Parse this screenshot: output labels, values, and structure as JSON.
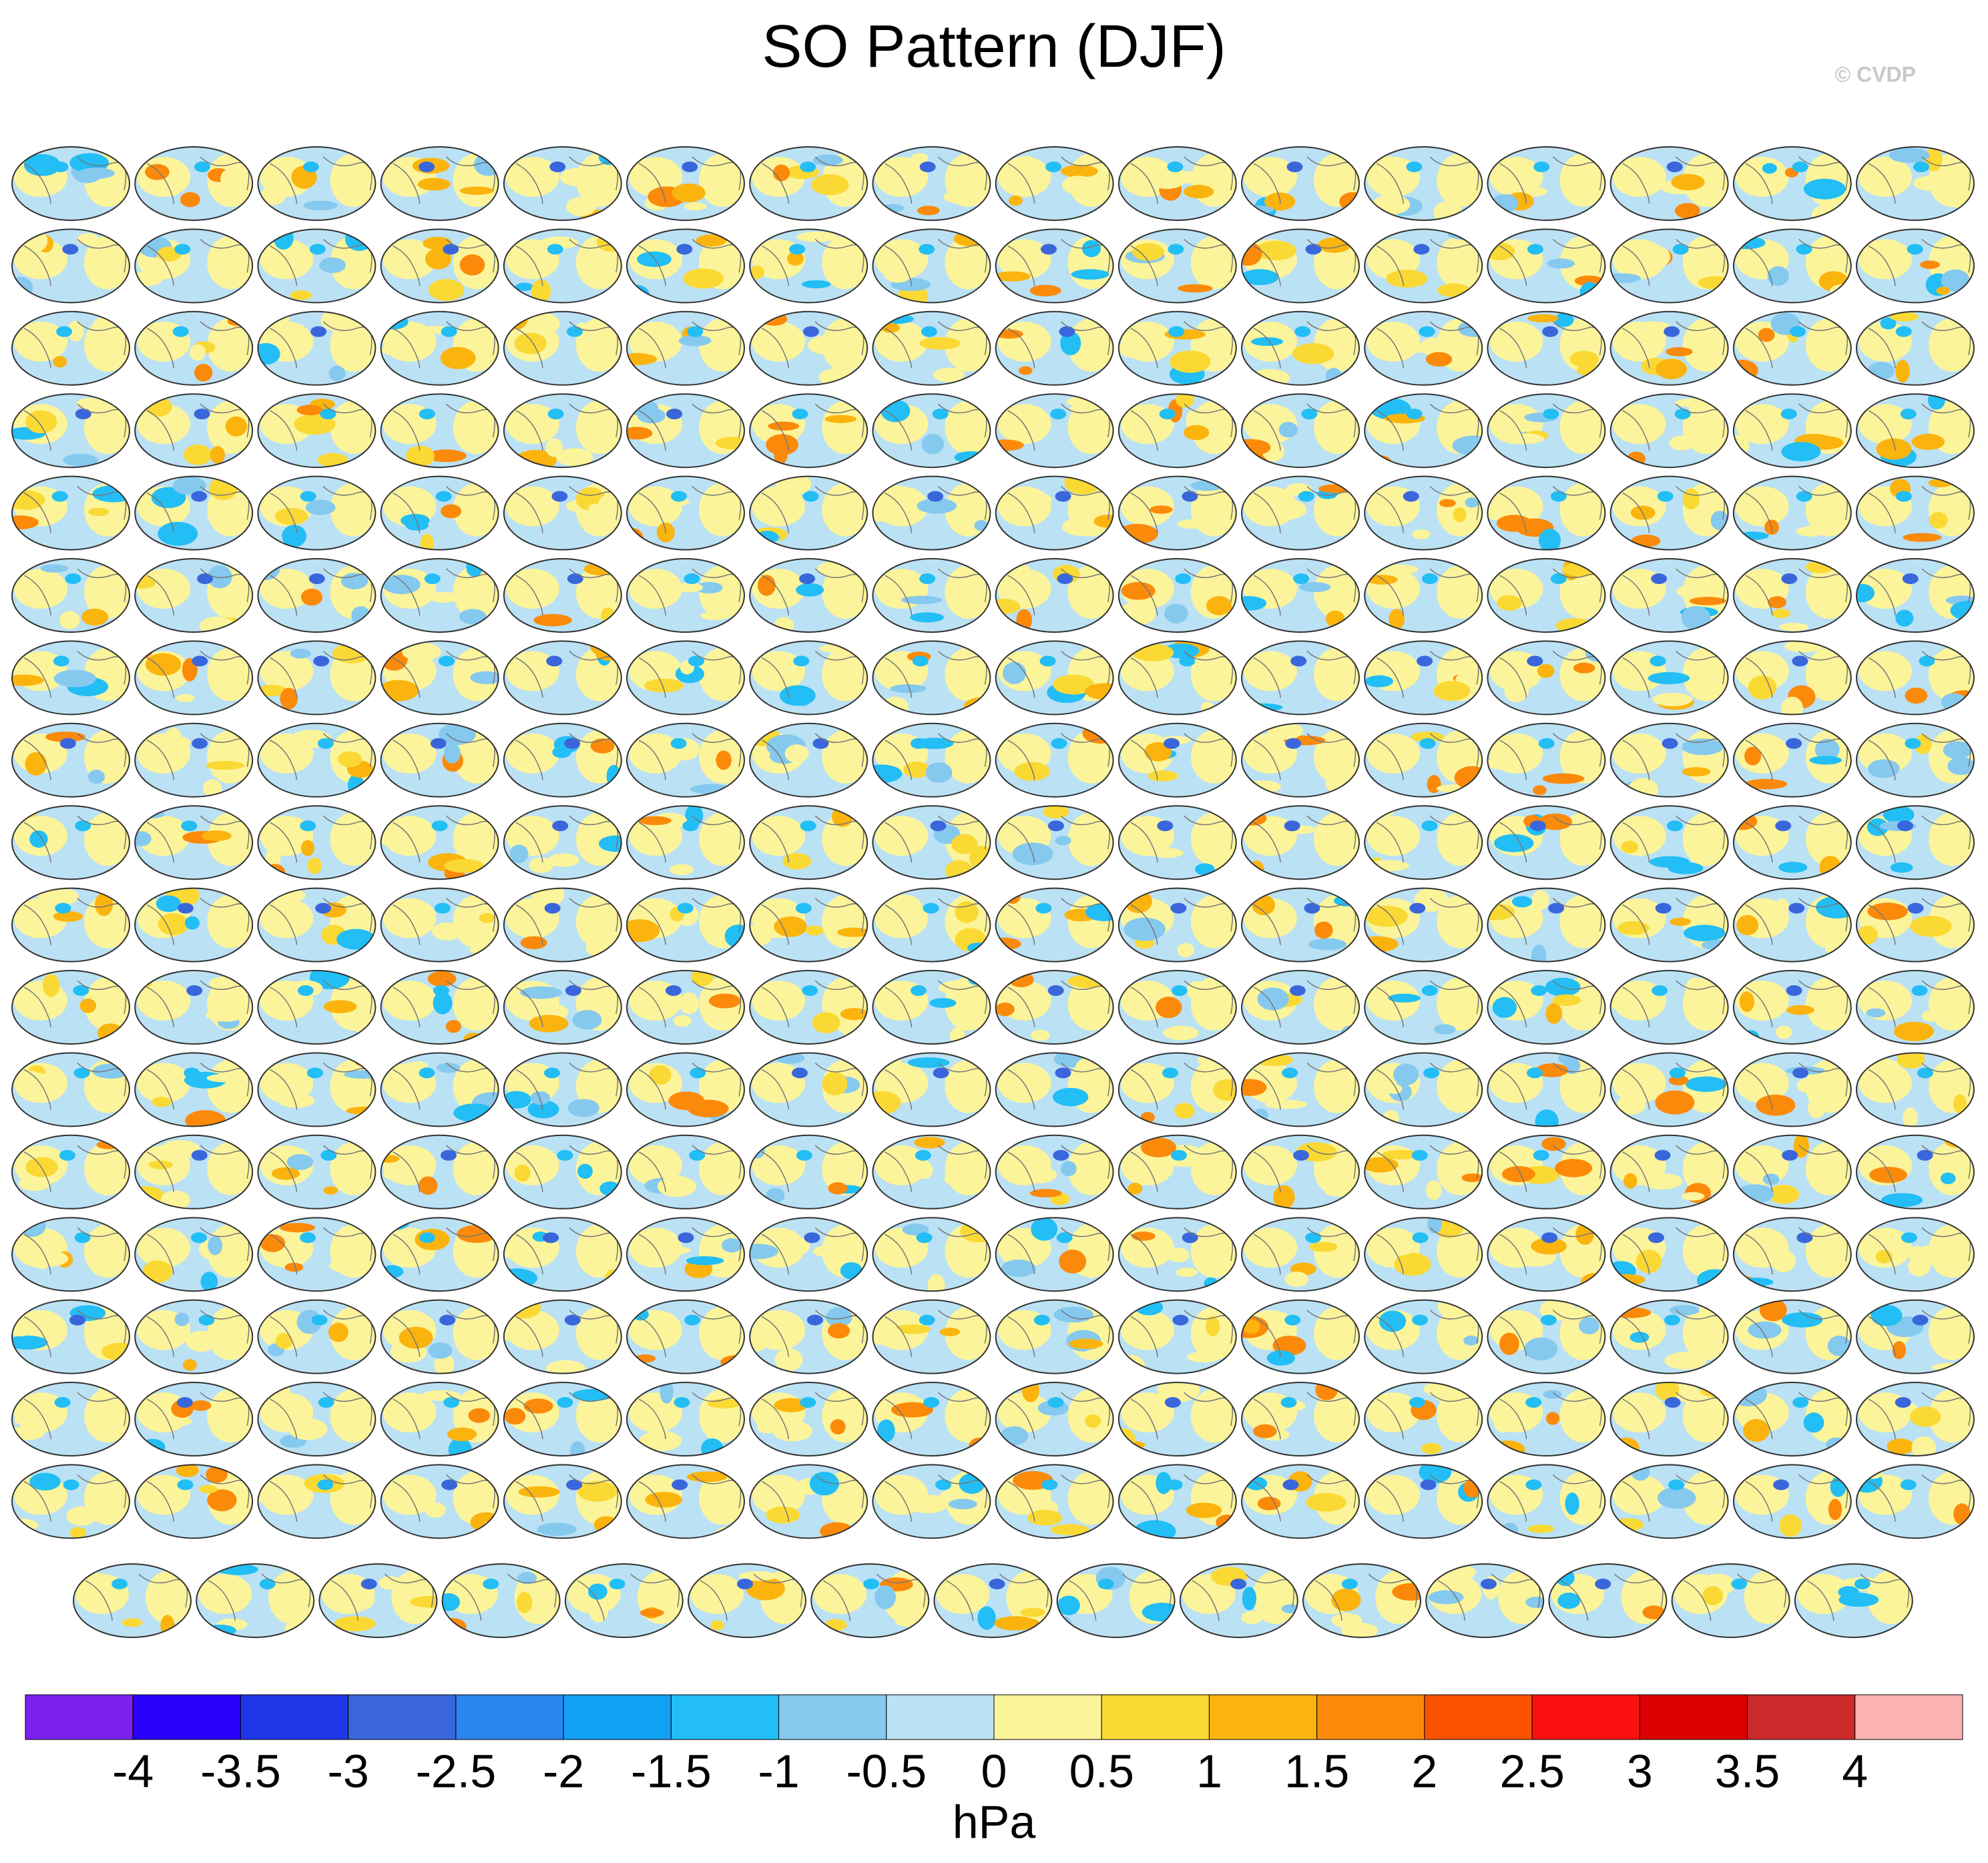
{
  "chart_data": {
    "type": "colorbar",
    "title": "SO Pattern (DJF)",
    "watermark": "© CVDP",
    "colors": [
      "#7b22ee",
      "#2a00fa",
      "#1e36e6",
      "#3a66dc",
      "#2a86f0",
      "#12a0f5",
      "#22bef5",
      "#86c9ef",
      "#bbe1f4",
      "#fbf49a",
      "#fbd934",
      "#fbb40e",
      "#fb8a0a",
      "#fb5200",
      "#fb1010",
      "#dc0000",
      "#cc2a2a",
      "#fbb2b2"
    ],
    "ticks": [
      -4,
      -3.5,
      -3,
      -2.5,
      -2,
      -1.5,
      -1,
      -0.5,
      0,
      0.5,
      1,
      1.5,
      2,
      2.5,
      3,
      3.5,
      4
    ],
    "label": "hPa"
  }
}
